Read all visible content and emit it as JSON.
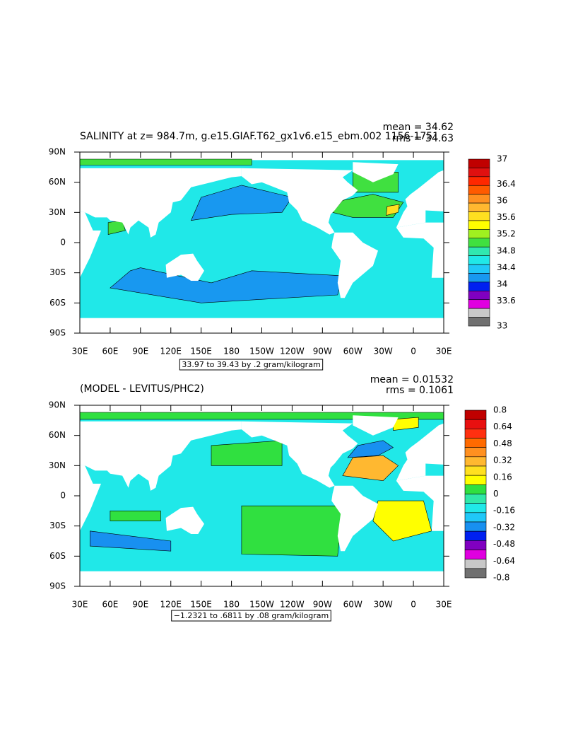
{
  "panels": [
    {
      "title": "SALINITY at z= 984.7m, g.e15.GIAF.T62_gx1v6.e15_ebm.002 1156-1751",
      "mean": "mean = 34.62",
      "rms": "rms = 34.63",
      "range": "33.97 to 39.43 by .2 gram/kilogram",
      "xticks": [
        "30E",
        "60E",
        "90E",
        "120E",
        "150E",
        "180",
        "150W",
        "120W",
        "90W",
        "60W",
        "30W",
        "0",
        "30E"
      ],
      "yticks": [
        "90N",
        "60N",
        "30N",
        "0",
        "30S",
        "60S",
        "90S"
      ],
      "cblim": [
        33,
        37
      ],
      "cbticks": [
        37,
        36.4,
        36,
        35.6,
        35.2,
        34.8,
        34.4,
        34,
        33.6,
        33
      ],
      "colors": [
        "#c00000",
        "#e01010",
        "#ff2800",
        "#ff5a00",
        "#ff9020",
        "#ffb830",
        "#ffe020",
        "#ffff00",
        "#a0f020",
        "#40e040",
        "#30e8b0",
        "#20e8e8",
        "#20c8f8",
        "#1898f0",
        "#0020f0",
        "#8000c0",
        "#e000e0",
        "#c8c8c8",
        "#707070"
      ]
    },
    {
      "title": "(MODEL - LEVITUS/PHC2)",
      "mean": "mean = 0.01532",
      "rms": "rms = 0.1061",
      "range": "−1.2321 to .6811 by .08 gram/kilogram",
      "xticks": [
        "30E",
        "60E",
        "90E",
        "120E",
        "150E",
        "180",
        "150W",
        "120W",
        "90W",
        "60W",
        "30W",
        "0",
        "30E"
      ],
      "yticks": [
        "90N",
        "60N",
        "30N",
        "0",
        "30S",
        "60S",
        "90S"
      ],
      "cblim": [
        -0.8,
        0.8
      ],
      "cbticks": [
        0.8,
        0.64,
        0.48,
        0.32,
        0.16,
        0,
        -0.16,
        -0.32,
        -0.48,
        -0.64,
        -0.8
      ],
      "colors": [
        "#c00000",
        "#e81010",
        "#ff3010",
        "#ff6a00",
        "#ff9020",
        "#ffb830",
        "#ffe020",
        "#ffff00",
        "#30e040",
        "#30e8a8",
        "#20e8e8",
        "#20c8f8",
        "#1890f0",
        "#0020f0",
        "#8000c0",
        "#e000e0",
        "#c8c8c8",
        "#707070"
      ]
    }
  ]
}
